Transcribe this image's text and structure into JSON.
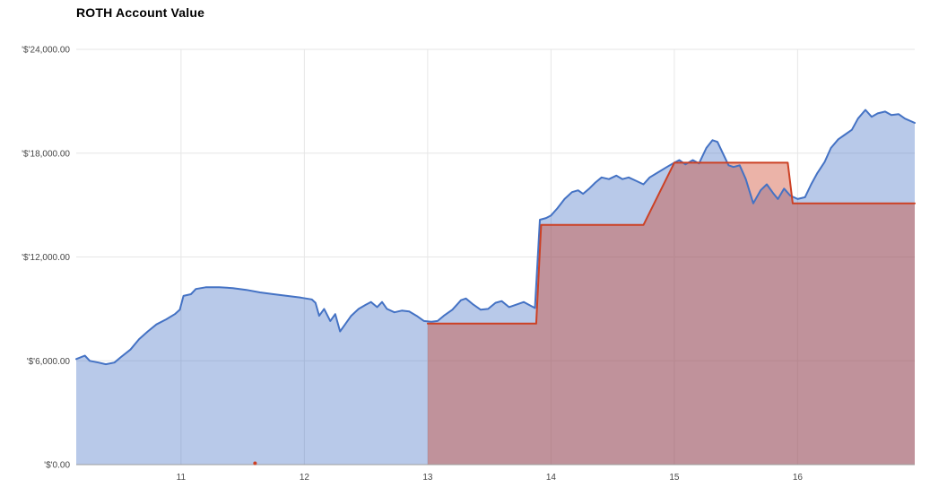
{
  "title": "ROTH Account Value",
  "chart_data": {
    "type": "area",
    "title": "ROTH Account Value",
    "xlabel": "",
    "ylabel": "",
    "legend": "none",
    "grid": true,
    "xlim": [
      10.15,
      16.95
    ],
    "ylim": [
      0,
      24000
    ],
    "x_ticks": [
      {
        "value": 11,
        "label": "11"
      },
      {
        "value": 12,
        "label": "12"
      },
      {
        "value": 13,
        "label": "13"
      },
      {
        "value": 14,
        "label": "14"
      },
      {
        "value": 15,
        "label": "15"
      },
      {
        "value": 16,
        "label": "16"
      }
    ],
    "y_ticks": [
      {
        "value": 0,
        "label": "'$'0.00"
      },
      {
        "value": 6000,
        "label": "'$'6,000.00"
      },
      {
        "value": 12000,
        "label": "'$'12,000.00"
      },
      {
        "value": 18000,
        "label": "'$'18,000.00"
      },
      {
        "value": 24000,
        "label": "'$'24,000.00"
      }
    ],
    "colors": {
      "grid": "#e6e6e6",
      "axis_line": "#9e9e9e",
      "tick_text": "#474747",
      "title_text": "#000000"
    },
    "series": [
      {
        "color": "#4472c4",
        "fill": "rgba(68,114,196,0.38)",
        "points": [
          [
            10.15,
            6100
          ],
          [
            10.22,
            6300
          ],
          [
            10.26,
            6000
          ],
          [
            10.33,
            5900
          ],
          [
            10.39,
            5800
          ],
          [
            10.46,
            5900
          ],
          [
            10.51,
            6200
          ],
          [
            10.59,
            6650
          ],
          [
            10.66,
            7250
          ],
          [
            10.73,
            7700
          ],
          [
            10.8,
            8100
          ],
          [
            10.88,
            8400
          ],
          [
            10.95,
            8700
          ],
          [
            10.99,
            8950
          ],
          [
            11.02,
            9750
          ],
          [
            11.08,
            9850
          ],
          [
            11.12,
            10150
          ],
          [
            11.2,
            10250
          ],
          [
            11.31,
            10250
          ],
          [
            11.42,
            10200
          ],
          [
            11.53,
            10100
          ],
          [
            11.64,
            9950
          ],
          [
            11.75,
            9850
          ],
          [
            11.86,
            9750
          ],
          [
            11.97,
            9650
          ],
          [
            12.06,
            9550
          ],
          [
            12.09,
            9350
          ],
          [
            12.12,
            8600
          ],
          [
            12.16,
            9000
          ],
          [
            12.21,
            8300
          ],
          [
            12.25,
            8700
          ],
          [
            12.29,
            7700
          ],
          [
            12.34,
            8200
          ],
          [
            12.38,
            8600
          ],
          [
            12.44,
            9000
          ],
          [
            12.5,
            9250
          ],
          [
            12.54,
            9400
          ],
          [
            12.59,
            9100
          ],
          [
            12.63,
            9400
          ],
          [
            12.67,
            9000
          ],
          [
            12.73,
            8800
          ],
          [
            12.79,
            8900
          ],
          [
            12.85,
            8850
          ],
          [
            12.91,
            8600
          ],
          [
            12.97,
            8300
          ],
          [
            13.03,
            8250
          ],
          [
            13.08,
            8300
          ],
          [
            13.13,
            8600
          ],
          [
            13.2,
            8950
          ],
          [
            13.27,
            9500
          ],
          [
            13.31,
            9600
          ],
          [
            13.37,
            9250
          ],
          [
            13.43,
            8950
          ],
          [
            13.49,
            9000
          ],
          [
            13.55,
            9350
          ],
          [
            13.6,
            9450
          ],
          [
            13.66,
            9100
          ],
          [
            13.72,
            9250
          ],
          [
            13.78,
            9400
          ],
          [
            13.83,
            9200
          ],
          [
            13.87,
            9050
          ],
          [
            13.91,
            14150
          ],
          [
            13.96,
            14250
          ],
          [
            14.0,
            14400
          ],
          [
            14.05,
            14800
          ],
          [
            14.11,
            15350
          ],
          [
            14.17,
            15750
          ],
          [
            14.22,
            15850
          ],
          [
            14.26,
            15650
          ],
          [
            14.31,
            15950
          ],
          [
            14.36,
            16300
          ],
          [
            14.41,
            16600
          ],
          [
            14.47,
            16500
          ],
          [
            14.53,
            16700
          ],
          [
            14.58,
            16500
          ],
          [
            14.63,
            16600
          ],
          [
            14.69,
            16400
          ],
          [
            14.75,
            16200
          ],
          [
            14.8,
            16600
          ],
          [
            14.87,
            16900
          ],
          [
            14.94,
            17200
          ],
          [
            15.0,
            17450
          ],
          [
            15.04,
            17600
          ],
          [
            15.09,
            17350
          ],
          [
            15.15,
            17600
          ],
          [
            15.2,
            17400
          ],
          [
            15.26,
            18300
          ],
          [
            15.31,
            18750
          ],
          [
            15.35,
            18650
          ],
          [
            15.39,
            18050
          ],
          [
            15.44,
            17300
          ],
          [
            15.48,
            17200
          ],
          [
            15.53,
            17300
          ],
          [
            15.58,
            16500
          ],
          [
            15.64,
            15100
          ],
          [
            15.7,
            15850
          ],
          [
            15.75,
            16200
          ],
          [
            15.8,
            15700
          ],
          [
            15.84,
            15350
          ],
          [
            15.89,
            15950
          ],
          [
            15.94,
            15550
          ],
          [
            16.0,
            15350
          ],
          [
            16.06,
            15450
          ],
          [
            16.11,
            16200
          ],
          [
            16.16,
            16850
          ],
          [
            16.22,
            17500
          ],
          [
            16.27,
            18300
          ],
          [
            16.33,
            18800
          ],
          [
            16.38,
            19050
          ],
          [
            16.44,
            19350
          ],
          [
            16.49,
            20000
          ],
          [
            16.55,
            20500
          ],
          [
            16.6,
            20100
          ],
          [
            16.65,
            20300
          ],
          [
            16.71,
            20400
          ],
          [
            16.76,
            20200
          ],
          [
            16.82,
            20250
          ],
          [
            16.87,
            20000
          ],
          [
            16.95,
            19750
          ]
        ]
      },
      {
        "color": "#cc4125",
        "fill": "rgba(204,65,37,0.40)",
        "points": [
          [
            13.0,
            8150
          ],
          [
            13.88,
            8150
          ],
          [
            13.92,
            13850
          ],
          [
            14.75,
            13850
          ],
          [
            15.0,
            17450
          ],
          [
            15.92,
            17450
          ],
          [
            15.96,
            15100
          ],
          [
            16.95,
            15100
          ]
        ],
        "marker_point": [
          11.6,
          0
        ]
      }
    ]
  }
}
